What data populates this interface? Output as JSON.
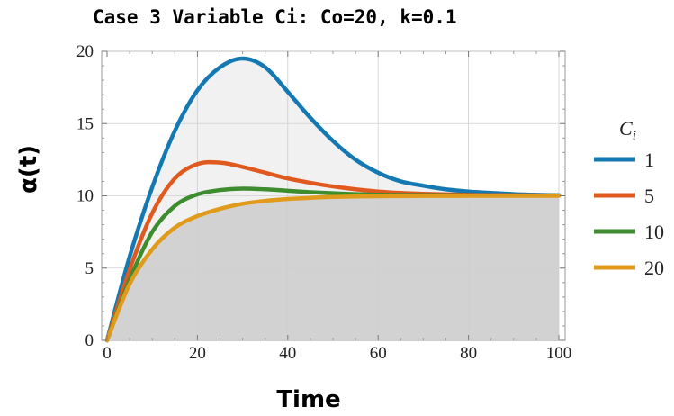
{
  "chart_data": {
    "type": "line",
    "title": "Case 3 Variable Ci: Co=20, k=0.1",
    "xlabel": "Time",
    "ylabel": "α(t)",
    "xlim": [
      0,
      100
    ],
    "ylim": [
      0,
      20
    ],
    "xticks": [
      0,
      20,
      40,
      60,
      80,
      100
    ],
    "yticks": [
      0,
      5,
      10,
      15,
      20
    ],
    "grid": true,
    "legend_title": "C",
    "legend_title_sub": "i",
    "legend_position": "right",
    "x": [
      0,
      5,
      10,
      15,
      20,
      25,
      30,
      35,
      40,
      45,
      50,
      55,
      60,
      65,
      70,
      75,
      80,
      85,
      90,
      95,
      100
    ],
    "series": [
      {
        "name": "1",
        "color": "#1479b2",
        "values": [
          0,
          5.8,
          10.6,
          14.5,
          17.3,
          18.9,
          19.5,
          18.9,
          17.2,
          15.4,
          13.8,
          12.5,
          11.6,
          11.0,
          10.7,
          10.45,
          10.3,
          10.2,
          10.12,
          10.07,
          10.04
        ]
      },
      {
        "name": "5",
        "color": "#e05a1f",
        "values": [
          0,
          4.9,
          8.8,
          11.2,
          12.2,
          12.3,
          12.0,
          11.6,
          11.2,
          10.9,
          10.65,
          10.45,
          10.3,
          10.2,
          10.14,
          10.1,
          10.07,
          10.05,
          10.04,
          10.03,
          10.02
        ]
      },
      {
        "name": "10",
        "color": "#3d8c2e",
        "values": [
          0,
          4.2,
          7.5,
          9.3,
          10.1,
          10.4,
          10.5,
          10.45,
          10.35,
          10.25,
          10.18,
          10.12,
          10.08,
          10.06,
          10.05,
          10.04,
          10.03,
          10.02,
          10.02,
          10.02,
          10.02
        ]
      },
      {
        "name": "20",
        "color": "#e09b1c",
        "values": [
          0,
          3.9,
          6.3,
          7.8,
          8.6,
          9.1,
          9.45,
          9.65,
          9.78,
          9.86,
          9.92,
          9.95,
          9.97,
          9.98,
          9.99,
          9.99,
          10.0,
          10.0,
          10.0,
          10.0,
          10.0
        ]
      }
    ]
  }
}
